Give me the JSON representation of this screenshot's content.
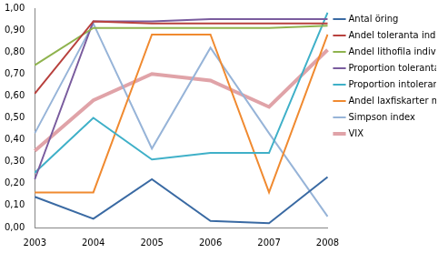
{
  "chart_data": {
    "type": "line",
    "categories": [
      "2003",
      "2004",
      "2005",
      "2006",
      "2007",
      "2008"
    ],
    "series": [
      {
        "name": "Antal öring",
        "color": "#3a6aa3",
        "values": [
          0.14,
          0.04,
          0.22,
          0.03,
          0.02,
          0.23
        ]
      },
      {
        "name": "Andel toleranta individer",
        "color": "#b8413e",
        "values": [
          0.61,
          0.94,
          0.93,
          0.93,
          0.93,
          0.93
        ]
      },
      {
        "name": "Andel lithofila individer",
        "color": "#8fb34e",
        "values": [
          0.74,
          0.91,
          0.91,
          0.91,
          0.91,
          0.92
        ]
      },
      {
        "name": "Proportion toleranta arter",
        "color": "#7a5c9e",
        "values": [
          0.22,
          0.94,
          0.94,
          0.95,
          0.95,
          0.95
        ]
      },
      {
        "name": "Proportion intoleranta arter",
        "color": "#3fb0c8",
        "values": [
          0.25,
          0.5,
          0.31,
          0.34,
          0.34,
          0.98
        ]
      },
      {
        "name": "Andel laxfiskarter med reproduktion",
        "color": "#f08a30",
        "values": [
          0.16,
          0.16,
          0.88,
          0.88,
          0.16,
          0.88
        ]
      },
      {
        "name": "Simpson index",
        "color": "#97b4d8",
        "values": [
          0.43,
          0.93,
          0.36,
          0.82,
          0.43,
          0.05
        ]
      },
      {
        "name": "VIX",
        "color": "#e0a3a8",
        "values": [
          0.35,
          0.58,
          0.7,
          0.67,
          0.55,
          0.81
        ]
      }
    ],
    "ylim": [
      0,
      1
    ],
    "yticks": [
      {
        "value": 0,
        "label": "0,00"
      },
      {
        "value": 0.1,
        "label": "0,10"
      },
      {
        "value": 0.2,
        "label": "0,20"
      },
      {
        "value": 0.3,
        "label": "0,30"
      },
      {
        "value": 0.4,
        "label": "0,40"
      },
      {
        "value": 0.5,
        "label": "0,50"
      },
      {
        "value": 0.6,
        "label": "0,60"
      },
      {
        "value": 0.7,
        "label": "0,70"
      },
      {
        "value": 0.8,
        "label": "0,80"
      },
      {
        "value": 0.9,
        "label": "0,90"
      },
      {
        "value": 1,
        "label": "1,00"
      }
    ],
    "grid": false,
    "legend": "right"
  }
}
